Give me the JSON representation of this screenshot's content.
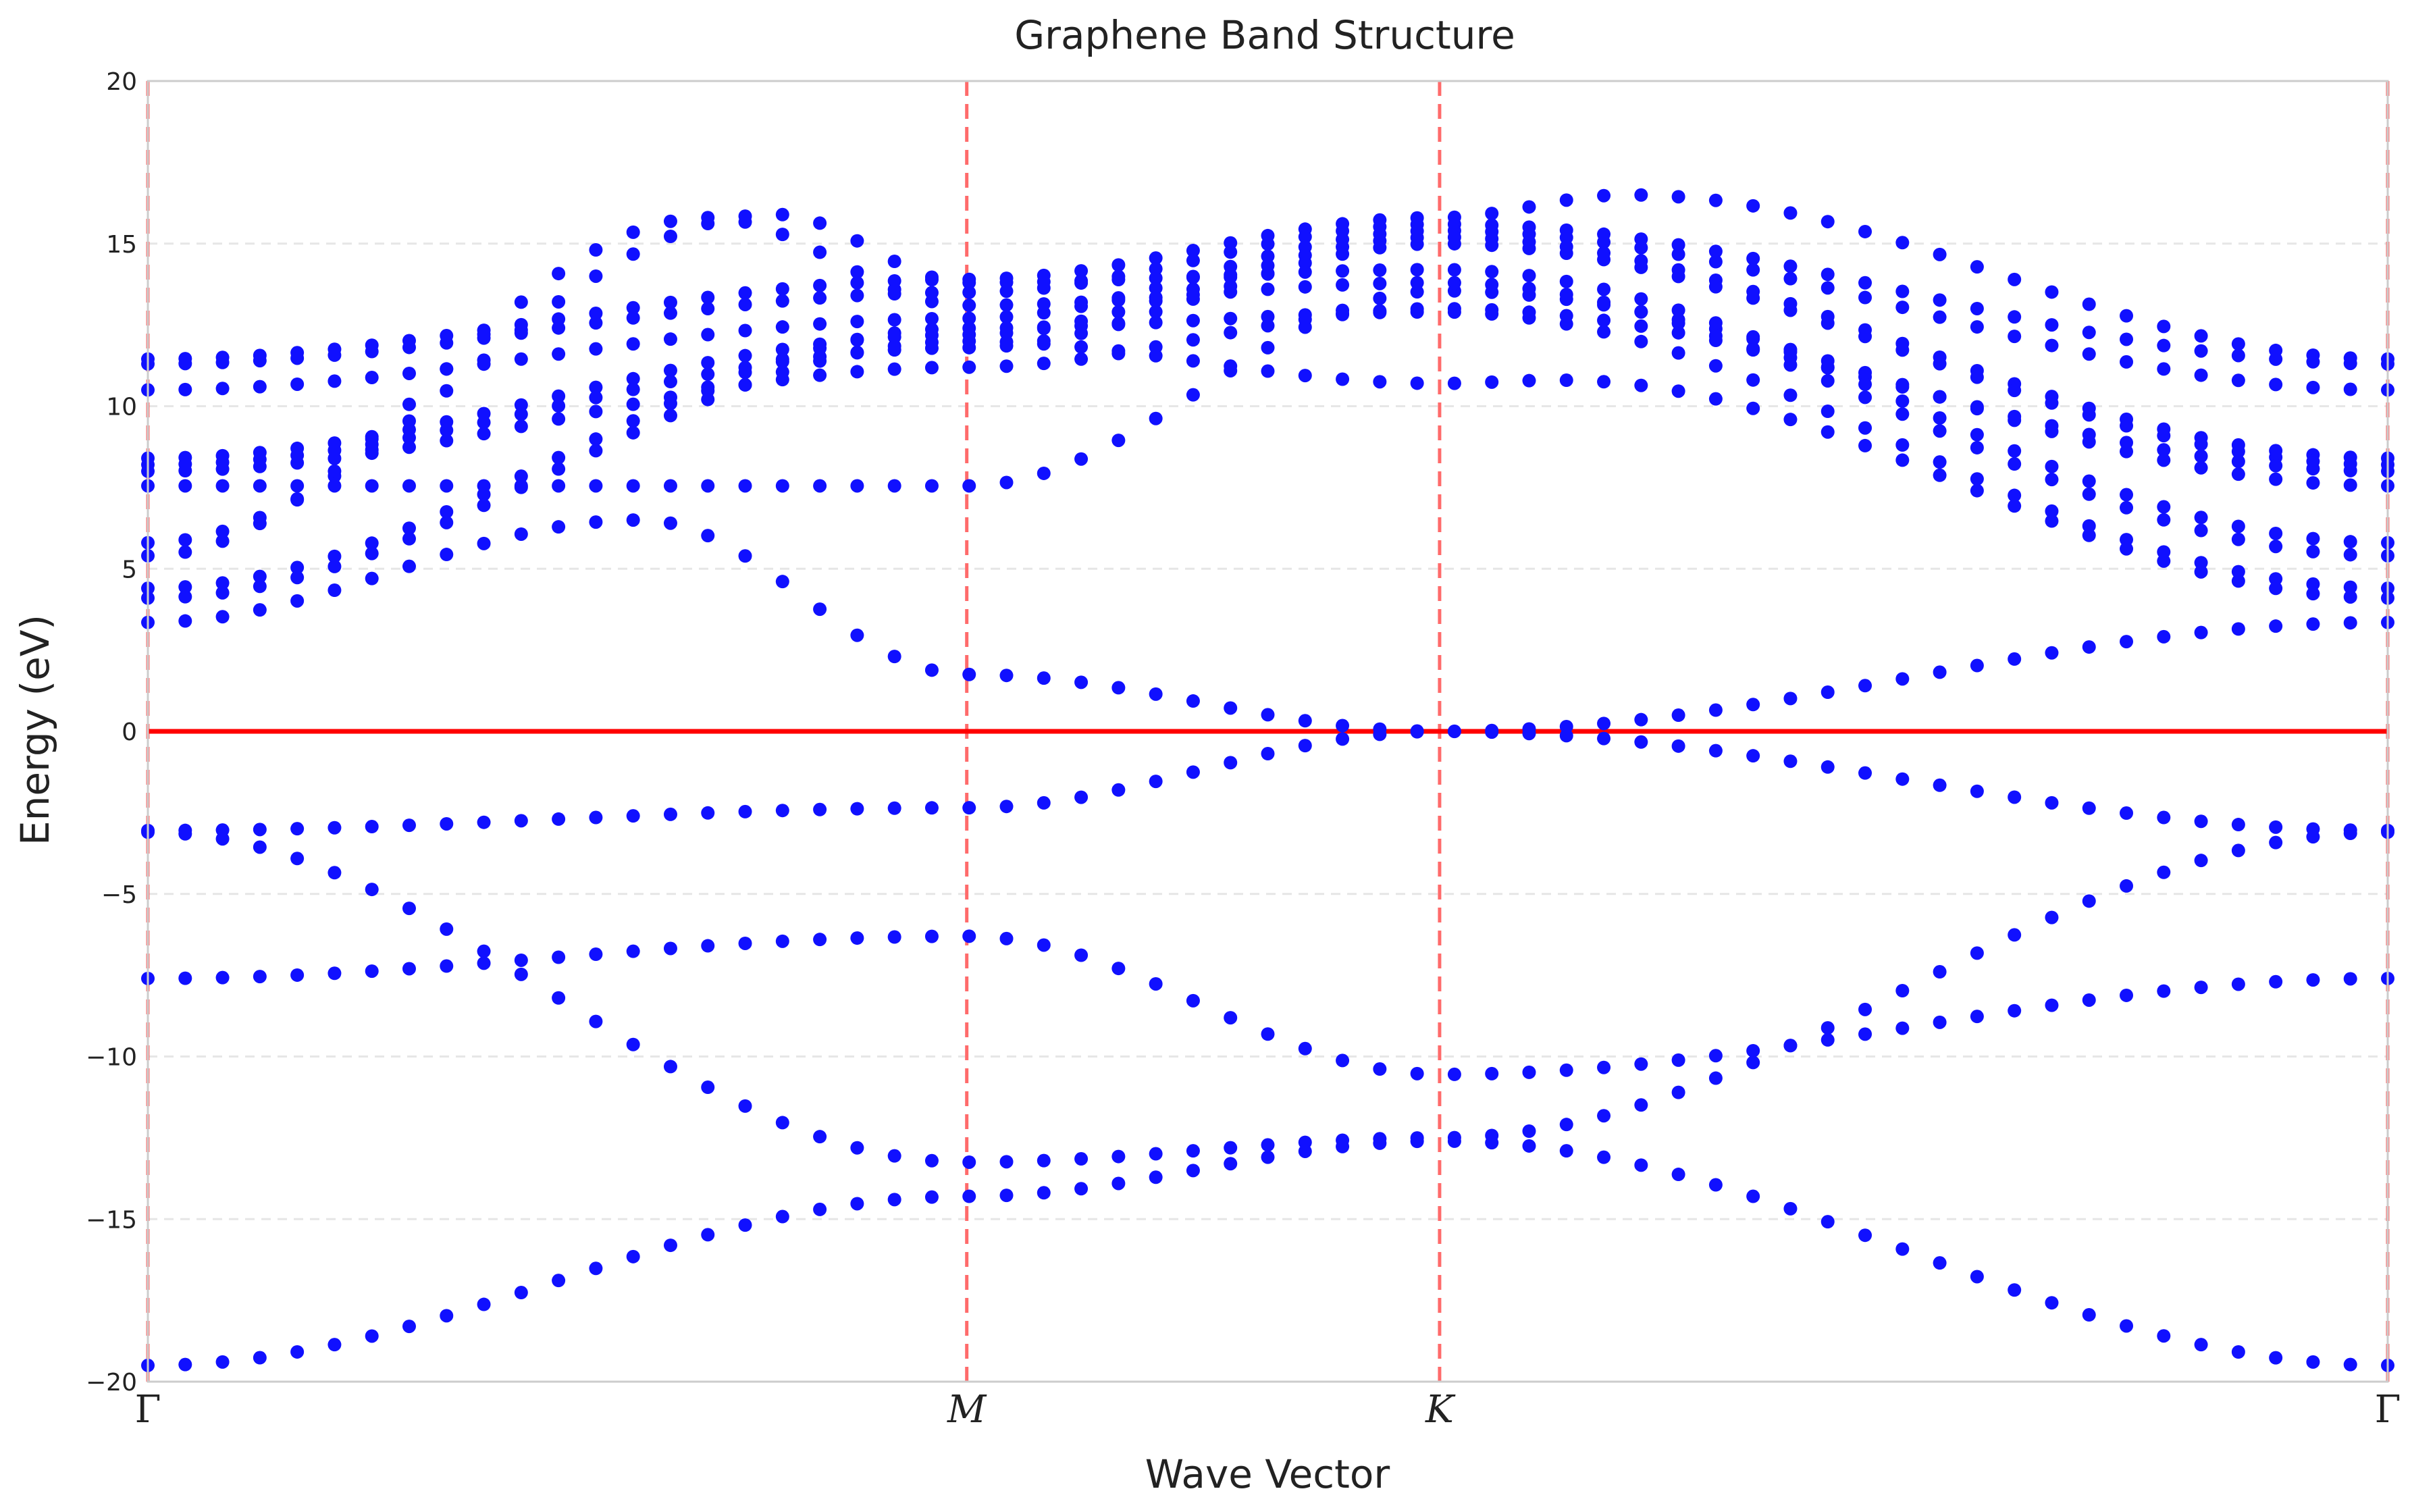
{
  "chart_data": {
    "type": "scatter",
    "title": "Graphene Band Structure",
    "xlabel": "Wave Vector",
    "ylabel": "Energy (eV)",
    "ylim": [
      -20,
      20
    ],
    "yticks": [
      20,
      15,
      10,
      5,
      0,
      -5,
      -10,
      -15,
      -20
    ],
    "ytick_labels": [
      "20",
      "15",
      "10",
      "5",
      "0",
      "−5",
      "−10",
      "−15",
      "−20"
    ],
    "xlim": [
      0,
      1
    ],
    "xticks": [
      {
        "label": "Γ",
        "pos": 0.0
      },
      {
        "label": "M",
        "pos": 0.3656
      },
      {
        "label": "K",
        "pos": 0.5767
      },
      {
        "label": "Γ",
        "pos": 1.0
      }
    ],
    "grid": "horizontal dashed",
    "fermi_level": 0,
    "colors": {
      "points": "#1010ff",
      "fermi_line": "#ff0000",
      "symmetry_lines": "#ff6b6b",
      "grid": "#e6e6e6",
      "frame": "#cccccc"
    },
    "series": [
      {
        "keypoints": [
          [
            0.0,
            11.45
          ],
          [
            0.3656,
            13.9
          ],
          [
            0.5767,
            15.8
          ],
          [
            0.66,
            16.5
          ],
          [
            1.0,
            11.45
          ]
        ]
      },
      {
        "keypoints": [
          [
            0.0,
            11.3
          ],
          [
            0.3656,
            13.5
          ],
          [
            0.5767,
            15.6
          ],
          [
            1.0,
            11.3
          ]
        ]
      },
      {
        "keypoints": [
          [
            0.0,
            10.5
          ],
          [
            0.3656,
            12.7
          ],
          [
            0.5767,
            15.4
          ],
          [
            1.0,
            10.5
          ]
        ]
      },
      {
        "keypoints": [
          [
            0.0,
            8.4
          ],
          [
            0.3656,
            12.2
          ],
          [
            0.5767,
            15.2
          ],
          [
            1.0,
            8.4
          ]
        ]
      },
      {
        "keypoints": [
          [
            0.0,
            8.2
          ],
          [
            0.3656,
            11.8
          ],
          [
            0.5767,
            15.0
          ],
          [
            1.0,
            8.2
          ]
        ]
      },
      {
        "keypoints": [
          [
            0.0,
            8.0
          ],
          [
            0.3656,
            11.2
          ],
          [
            0.5767,
            13.0
          ],
          [
            1.0,
            8.0
          ]
        ]
      },
      {
        "keypoints": [
          [
            0.0,
            7.55
          ],
          [
            0.3656,
            7.55
          ],
          [
            0.5767,
            13.55
          ],
          [
            1.0,
            7.55
          ]
        ]
      },
      {
        "keypoints": [
          [
            0.0,
            5.8
          ],
          [
            0.28,
            15.9
          ],
          [
            0.3656,
            13.8
          ],
          [
            0.5767,
            14.2
          ],
          [
            1.0,
            5.8
          ]
        ]
      },
      {
        "keypoints": [
          [
            0.0,
            5.4
          ],
          [
            0.25,
            15.8
          ],
          [
            0.3656,
            13.1
          ],
          [
            0.5767,
            13.8
          ],
          [
            1.0,
            5.4
          ]
        ]
      },
      {
        "keypoints": [
          [
            0.0,
            4.4
          ],
          [
            0.3656,
            12.4
          ],
          [
            0.5767,
            12.9
          ],
          [
            1.0,
            4.4
          ]
        ]
      },
      {
        "keypoints": [
          [
            0.0,
            4.1
          ],
          [
            0.3656,
            12.0
          ],
          [
            0.5767,
            10.7
          ],
          [
            0.63,
            10.8
          ],
          [
            1.0,
            4.1
          ]
        ]
      },
      {
        "keypoints": [
          [
            0.0,
            3.35
          ],
          [
            0.22,
            6.5
          ],
          [
            0.3656,
            1.75
          ],
          [
            0.5767,
            0.0
          ],
          [
            1.0,
            3.35
          ]
        ]
      },
      {
        "keypoints": [
          [
            0.0,
            -3.05
          ],
          [
            0.3656,
            -2.35
          ],
          [
            0.5767,
            0.0
          ],
          [
            1.0,
            -3.05
          ]
        ]
      },
      {
        "keypoints": [
          [
            0.0,
            -7.6
          ],
          [
            0.3656,
            -6.3
          ],
          [
            0.5767,
            -10.55
          ],
          [
            1.0,
            -7.6
          ]
        ]
      },
      {
        "keypoints": [
          [
            0.0,
            -3.1
          ],
          [
            0.3656,
            -13.25
          ],
          [
            0.5767,
            -12.5
          ],
          [
            1.0,
            -3.1
          ]
        ]
      },
      {
        "keypoints": [
          [
            0.0,
            -19.5
          ],
          [
            0.3656,
            -14.3
          ],
          [
            0.5767,
            -12.6
          ],
          [
            1.0,
            -19.5
          ]
        ]
      }
    ]
  }
}
